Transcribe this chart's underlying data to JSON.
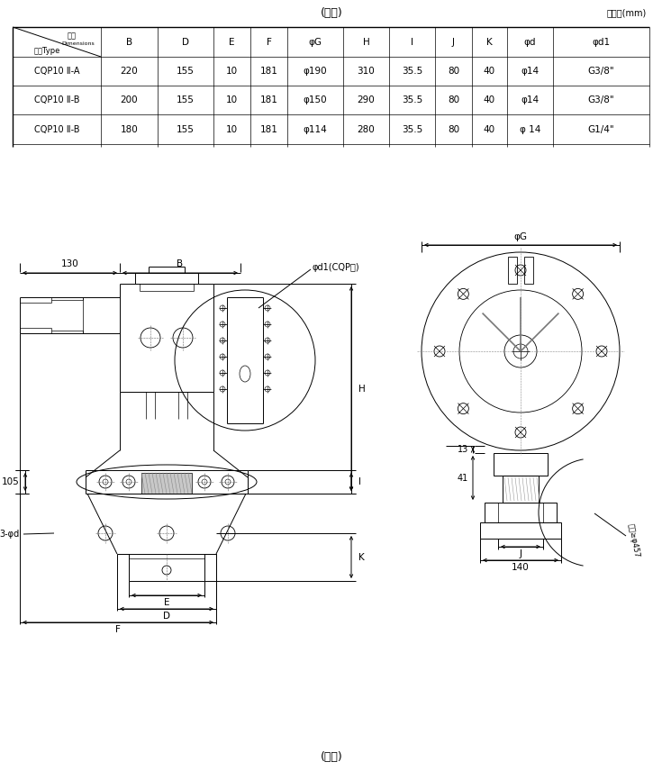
{
  "title_center": "(表二)",
  "title_unit": "单位：(mm)",
  "caption_bottom": "(图一)",
  "table": {
    "rows": [
      [
        "CQP10 Ⅱ-A",
        "220",
        "155",
        "10",
        "181",
        "φ190",
        "310",
        "35.5",
        "80",
        "40",
        "φ14",
        "G3/8\""
      ],
      [
        "CQP10 Ⅱ-B",
        "200",
        "155",
        "10",
        "181",
        "φ150",
        "290",
        "35.5",
        "80",
        "40",
        "φ14",
        "G3/8\""
      ],
      [
        "CQP10 Ⅱ-B",
        "180",
        "155",
        "10",
        "181",
        "φ114",
        "280",
        "35.5",
        "80",
        "40",
        "φ 14",
        "G1/4\""
      ]
    ]
  },
  "bg_color": "#ffffff",
  "line_color": "#000000"
}
